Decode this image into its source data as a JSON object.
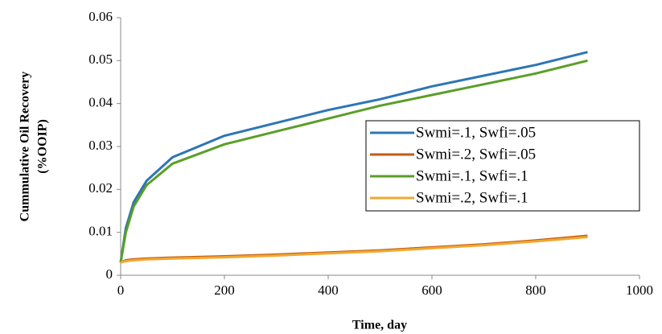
{
  "chart_data": {
    "type": "line",
    "xlabel": "Time, day",
    "ylabel": [
      "Cummulative Oil Recovery",
      "(%OOIP)"
    ],
    "x": [
      0,
      10,
      25,
      50,
      100,
      200,
      300,
      400,
      500,
      600,
      700,
      800,
      900
    ],
    "series": [
      {
        "name": "Swmi=.1, Swfi=.05",
        "color": "#2e75b6",
        "values": [
          0.003,
          0.011,
          0.017,
          0.022,
          0.0275,
          0.0325,
          0.0355,
          0.0385,
          0.041,
          0.044,
          0.0465,
          0.049,
          0.052
        ]
      },
      {
        "name": "Swmi=.2, Swfi=.05",
        "color": "#c55a11",
        "values": [
          0.003,
          0.0035,
          0.0037,
          0.0039,
          0.0041,
          0.0044,
          0.0048,
          0.0053,
          0.0058,
          0.0065,
          0.0072,
          0.0081,
          0.0092
        ]
      },
      {
        "name": "Swmi=.1, Swfi=.1",
        "color": "#5a9e28",
        "values": [
          0.003,
          0.01,
          0.016,
          0.021,
          0.026,
          0.0305,
          0.0335,
          0.0365,
          0.0395,
          0.042,
          0.0445,
          0.047,
          0.05
        ]
      },
      {
        "name": "Swmi=.2, Swfi=.1",
        "color": "#f0a830",
        "values": [
          0.003,
          0.0033,
          0.0035,
          0.0037,
          0.0039,
          0.0042,
          0.0046,
          0.0051,
          0.0056,
          0.0063,
          0.007,
          0.0079,
          0.0089
        ]
      }
    ],
    "xlim": [
      0,
      1000
    ],
    "xticks": [
      0,
      200,
      400,
      600,
      800,
      1000
    ],
    "ylim": [
      0,
      0.06
    ],
    "yticks": [
      0,
      0.01,
      0.02,
      0.03,
      0.04,
      0.05,
      0.06
    ],
    "grid": false,
    "legend": "right"
  }
}
